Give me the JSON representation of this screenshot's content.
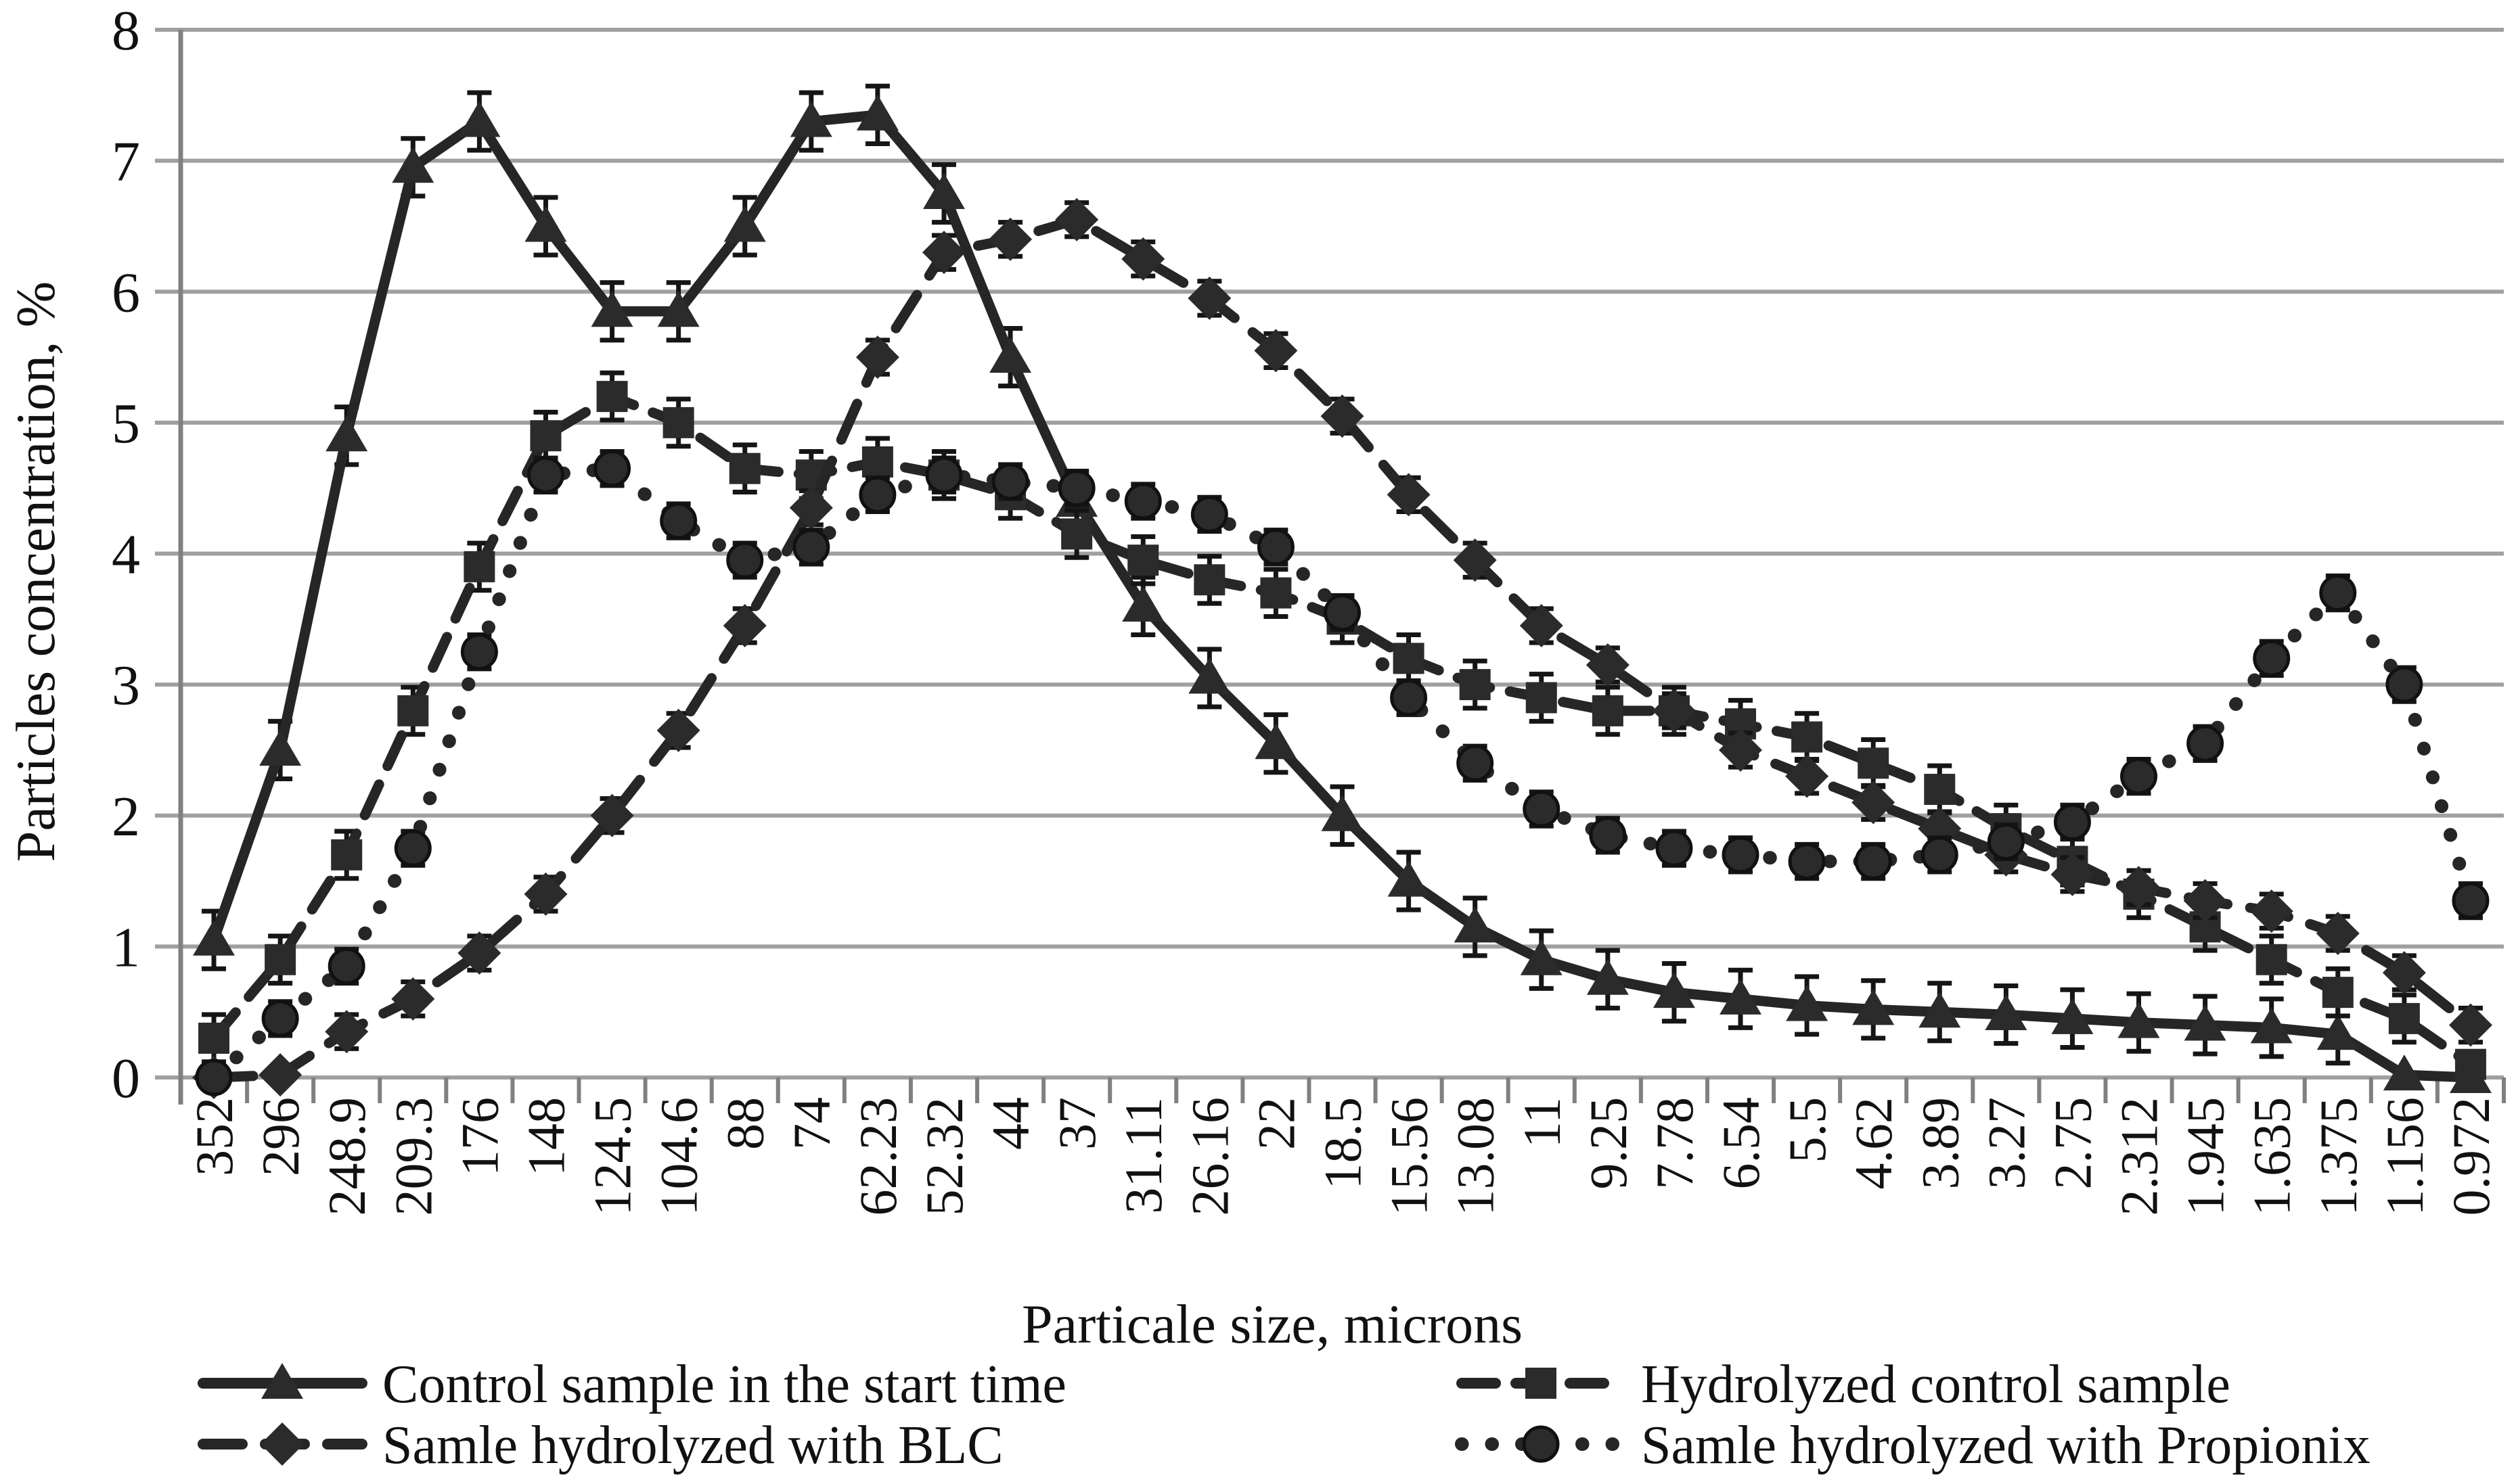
{
  "colors": {
    "background": "#ffffff",
    "series": "#262626",
    "marker": "#2b2b2b",
    "gridline": "#a0a0a0",
    "axis": "#808080",
    "text": "#111111"
  },
  "chart_data": {
    "type": "line",
    "title": "",
    "xlabel": "Particale size, microns",
    "ylabel": "Particles concentration, %",
    "ylim": [
      0,
      8
    ],
    "yticks": [
      0,
      1,
      2,
      3,
      4,
      5,
      6,
      7,
      8
    ],
    "grid": "horizontal",
    "legend_position": "bottom",
    "categories": [
      "352",
      "296",
      "248.9",
      "209.3",
      "176",
      "148",
      "124.5",
      "104.6",
      "88",
      "74",
      "62.23",
      "52.32",
      "44",
      "37",
      "31.11",
      "26.16",
      "22",
      "18.5",
      "15.56",
      "13.08",
      "11",
      "9.25",
      "7.78",
      "6.54",
      "5.5",
      "4.62",
      "3.89",
      "3.27",
      "2.75",
      "2.312",
      "1.945",
      "1.635",
      "1.375",
      "1.156",
      "0.972"
    ],
    "series": [
      {
        "name": "Control sample in the start time",
        "marker": "triangle",
        "line": "solid",
        "error": 0.22,
        "values": [
          1.05,
          2.5,
          4.9,
          6.95,
          7.3,
          6.5,
          5.85,
          5.85,
          6.5,
          7.3,
          7.35,
          6.75,
          5.5,
          4.4,
          3.6,
          3.05,
          2.55,
          2.0,
          1.5,
          1.15,
          0.9,
          0.75,
          0.65,
          0.6,
          0.55,
          0.52,
          0.5,
          0.48,
          0.45,
          0.42,
          0.4,
          0.38,
          0.33,
          0.02,
          0.0
        ]
      },
      {
        "name": "Hydrolyzed control sample",
        "marker": "square",
        "line": "dashed",
        "error": 0.18,
        "values": [
          0.3,
          0.9,
          1.7,
          2.8,
          3.9,
          4.9,
          5.2,
          5.0,
          4.65,
          4.6,
          4.7,
          4.6,
          4.45,
          4.15,
          3.95,
          3.8,
          3.7,
          3.5,
          3.2,
          3.0,
          2.9,
          2.8,
          2.8,
          2.7,
          2.6,
          2.4,
          2.2,
          1.9,
          1.65,
          1.4,
          1.15,
          0.9,
          0.65,
          0.45,
          0.1
        ]
      },
      {
        "name": "Samle hydrolyzed with BLC",
        "marker": "diamond",
        "line": "dashed",
        "error": 0.13,
        "values": [
          0.0,
          0.02,
          0.35,
          0.6,
          0.95,
          1.4,
          2.0,
          2.65,
          3.45,
          4.35,
          5.5,
          6.3,
          6.4,
          6.55,
          6.25,
          5.95,
          5.55,
          5.05,
          4.45,
          3.95,
          3.45,
          3.15,
          2.8,
          2.5,
          2.3,
          2.1,
          1.9,
          1.7,
          1.55,
          1.45,
          1.35,
          1.27,
          1.1,
          0.8,
          0.4
        ]
      },
      {
        "name": "Samle hydrolyzed with Propionix",
        "marker": "circle",
        "line": "dotted",
        "error": 0.13,
        "values": [
          0.0,
          0.45,
          0.85,
          1.75,
          3.25,
          4.6,
          4.65,
          4.25,
          3.95,
          4.05,
          4.45,
          4.6,
          4.55,
          4.5,
          4.4,
          4.3,
          4.05,
          3.55,
          2.9,
          2.4,
          2.05,
          1.85,
          1.75,
          1.7,
          1.65,
          1.65,
          1.7,
          1.8,
          1.95,
          2.3,
          2.55,
          3.2,
          3.7,
          3.0,
          1.35
        ]
      }
    ],
    "legend_items": [
      "Control sample in the start time",
      "Hydrolyzed control sample",
      "Samle hydrolyzed with BLC",
      "Samle hydrolyzed with Propionix"
    ]
  }
}
